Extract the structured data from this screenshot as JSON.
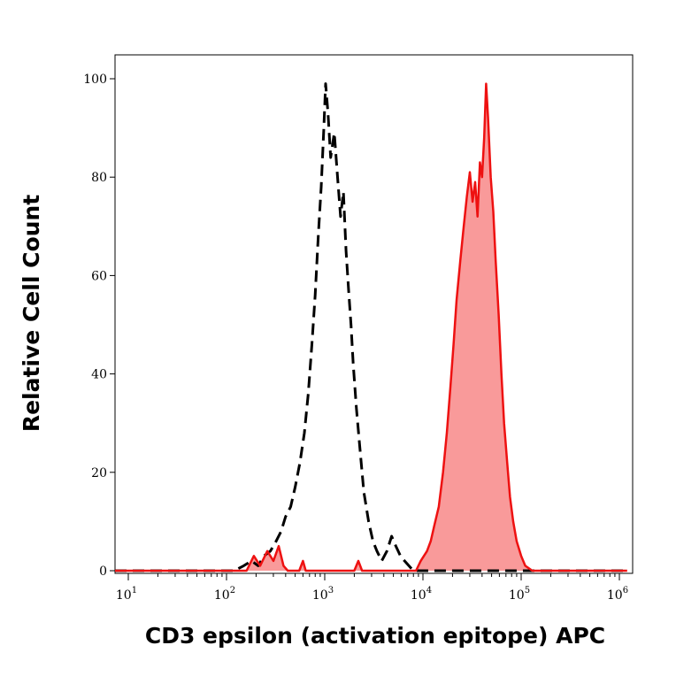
{
  "chart_data": {
    "type": "area",
    "xlabel": "CD3 epsilon (activation epitope) APC",
    "ylabel": "Relative Cell Count",
    "xscale": "log",
    "xlim": [
      7,
      1200000
    ],
    "ylim": [
      0,
      100
    ],
    "y_ticks": [
      {
        "value": 0,
        "label": "0"
      },
      {
        "value": 20,
        "label": "20"
      },
      {
        "value": 40,
        "label": "40"
      },
      {
        "value": 60,
        "label": "60"
      },
      {
        "value": 80,
        "label": "80"
      },
      {
        "value": 100,
        "label": "100"
      }
    ],
    "x_ticks": [
      {
        "value": 10,
        "base": "10",
        "exp": "1"
      },
      {
        "value": 100,
        "base": "10",
        "exp": "2"
      },
      {
        "value": 1000,
        "base": "10",
        "exp": "3"
      },
      {
        "value": 10000,
        "base": "10",
        "exp": "4"
      },
      {
        "value": 100000,
        "base": "10",
        "exp": "5"
      },
      {
        "value": 1000000,
        "base": "10",
        "exp": "6"
      }
    ],
    "grid": false,
    "series": [
      {
        "style": "dashed-line",
        "color": "#000000",
        "points": [
          [
            7,
            0
          ],
          [
            120,
            0
          ],
          [
            150,
            1
          ],
          [
            180,
            2
          ],
          [
            210,
            1
          ],
          [
            240,
            3
          ],
          [
            280,
            4
          ],
          [
            320,
            6
          ],
          [
            360,
            8
          ],
          [
            400,
            11
          ],
          [
            450,
            13
          ],
          [
            500,
            17
          ],
          [
            560,
            22
          ],
          [
            620,
            28
          ],
          [
            680,
            36
          ],
          [
            740,
            46
          ],
          [
            800,
            56
          ],
          [
            860,
            68
          ],
          [
            920,
            78
          ],
          [
            980,
            90
          ],
          [
            1020,
            99
          ],
          [
            1080,
            93
          ],
          [
            1150,
            84
          ],
          [
            1250,
            89
          ],
          [
            1350,
            80
          ],
          [
            1450,
            72
          ],
          [
            1550,
            77
          ],
          [
            1650,
            65
          ],
          [
            1750,
            57
          ],
          [
            1850,
            50
          ],
          [
            1950,
            42
          ],
          [
            2100,
            33
          ],
          [
            2300,
            24
          ],
          [
            2500,
            16
          ],
          [
            2800,
            10
          ],
          [
            3100,
            6
          ],
          [
            3400,
            4
          ],
          [
            3800,
            2
          ],
          [
            4300,
            4
          ],
          [
            4800,
            7
          ],
          [
            5300,
            5
          ],
          [
            5900,
            3
          ],
          [
            6500,
            2
          ],
          [
            8000,
            0
          ],
          [
            1200000,
            0
          ]
        ]
      },
      {
        "style": "filled-area",
        "color": "#ee1111",
        "fill": "#f99a9a",
        "points": [
          [
            7,
            0
          ],
          [
            160,
            0
          ],
          [
            190,
            3
          ],
          [
            220,
            1
          ],
          [
            260,
            4
          ],
          [
            300,
            2
          ],
          [
            340,
            5
          ],
          [
            380,
            1
          ],
          [
            420,
            0
          ],
          [
            550,
            0
          ],
          [
            600,
            2
          ],
          [
            640,
            0
          ],
          [
            2000,
            0
          ],
          [
            2200,
            2
          ],
          [
            2400,
            0
          ],
          [
            8500,
            0
          ],
          [
            9500,
            2
          ],
          [
            11000,
            4
          ],
          [
            12000,
            6
          ],
          [
            13000,
            9
          ],
          [
            14500,
            13
          ],
          [
            16000,
            20
          ],
          [
            17500,
            28
          ],
          [
            19000,
            37
          ],
          [
            20500,
            46
          ],
          [
            22000,
            55
          ],
          [
            24000,
            63
          ],
          [
            26000,
            70
          ],
          [
            28000,
            76
          ],
          [
            30000,
            81
          ],
          [
            32000,
            75
          ],
          [
            34000,
            79
          ],
          [
            36000,
            72
          ],
          [
            38000,
            83
          ],
          [
            40000,
            80
          ],
          [
            42000,
            88
          ],
          [
            44000,
            99
          ],
          [
            46000,
            92
          ],
          [
            49000,
            80
          ],
          [
            52000,
            73
          ],
          [
            55000,
            63
          ],
          [
            59000,
            52
          ],
          [
            63000,
            40
          ],
          [
            67000,
            30
          ],
          [
            72000,
            22
          ],
          [
            77000,
            15
          ],
          [
            83000,
            10
          ],
          [
            90000,
            6
          ],
          [
            100000,
            3
          ],
          [
            110000,
            1
          ],
          [
            130000,
            0
          ],
          [
            1200000,
            0
          ]
        ]
      }
    ]
  }
}
